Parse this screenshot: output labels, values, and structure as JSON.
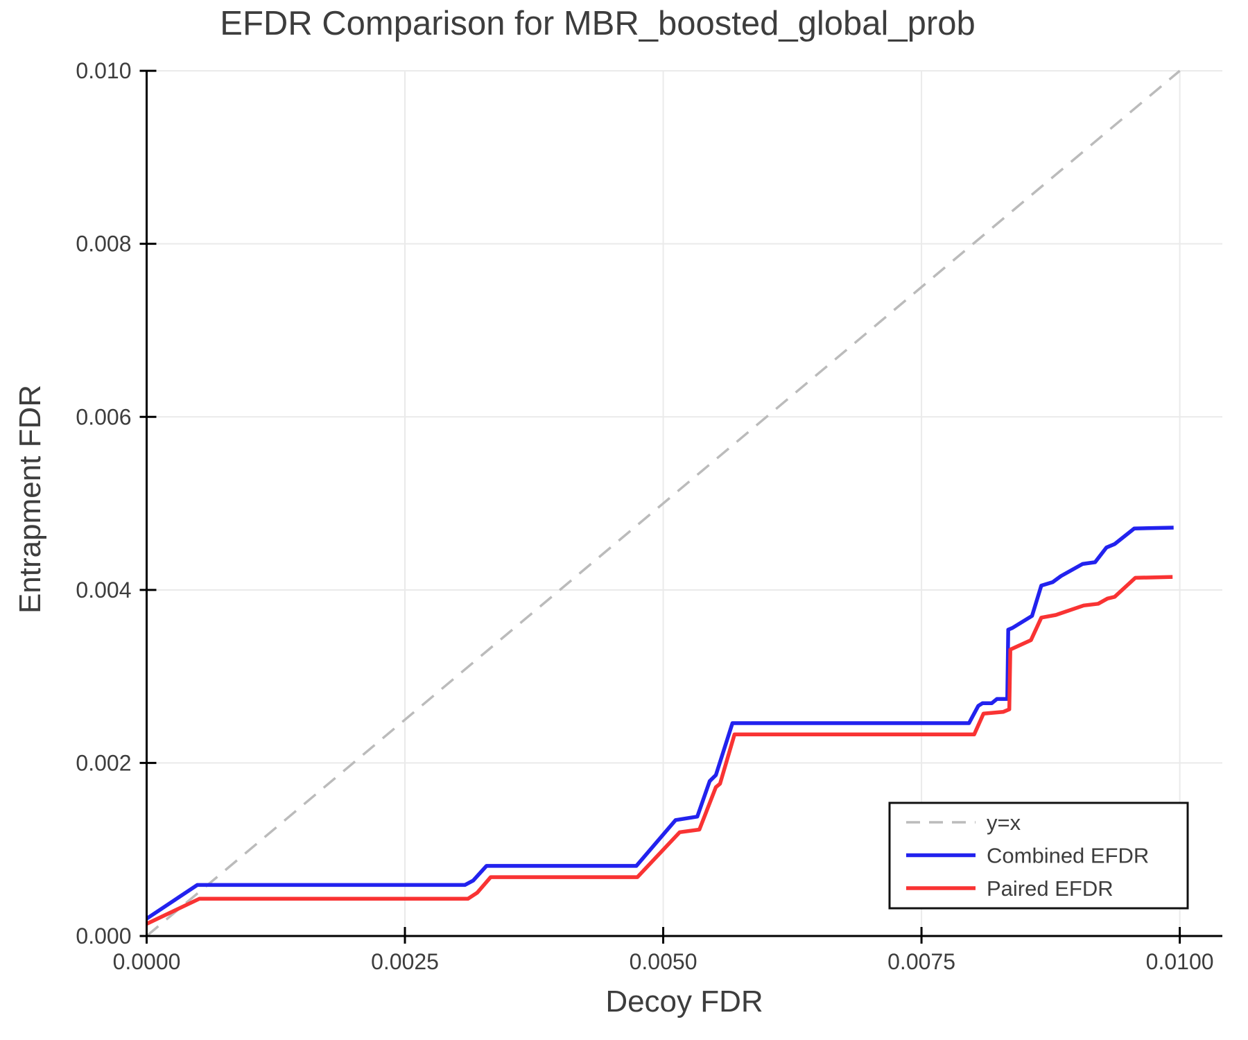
{
  "chart_data": {
    "type": "line",
    "title": "EFDR Comparison for MBR_boosted_global_prob",
    "xlabel": "Decoy FDR",
    "ylabel": "Entrapment FDR",
    "xlim": [
      0.0,
      0.01041
    ],
    "ylim": [
      0.0,
      0.01
    ],
    "grid": true,
    "x_ticks": {
      "values": [
        0.0,
        0.0025,
        0.005,
        0.0075,
        0.01
      ],
      "labels": [
        "0.0000",
        "0.0025",
        "0.0050",
        "0.0075",
        "0.0100"
      ]
    },
    "y_ticks": {
      "values": [
        0.0,
        0.002,
        0.004,
        0.006,
        0.008,
        0.01
      ],
      "labels": [
        "0.000",
        "0.002",
        "0.004",
        "0.006",
        "0.008",
        "0.010"
      ]
    },
    "legend": {
      "position": "lower right",
      "entries": [
        "y=x",
        "Combined EFDR",
        "Paired EFDR"
      ]
    },
    "reference_line": {
      "label": "y=x",
      "type": "identity",
      "style": "dashed",
      "color": "#bbbbbb",
      "from": [
        0.0,
        0.0
      ],
      "to": [
        0.01,
        0.01
      ]
    },
    "series": [
      {
        "name": "Combined EFDR",
        "color": "#2222ee",
        "points": [
          [
            0.0,
            0.0002
          ],
          [
            0.00049,
            0.00059
          ],
          [
            0.00308,
            0.00059
          ],
          [
            0.00316,
            0.00064
          ],
          [
            0.00329,
            0.00081
          ],
          [
            0.00474,
            0.00081
          ],
          [
            0.00512,
            0.00134
          ],
          [
            0.00533,
            0.00138
          ],
          [
            0.00545,
            0.00179
          ],
          [
            0.00551,
            0.00186
          ],
          [
            0.00567,
            0.00246
          ],
          [
            0.00796,
            0.00246
          ],
          [
            0.00805,
            0.00266
          ],
          [
            0.00809,
            0.00269
          ],
          [
            0.00818,
            0.00269
          ],
          [
            0.00823,
            0.00274
          ],
          [
            0.00833,
            0.00274
          ],
          [
            0.00834,
            0.00354
          ],
          [
            0.00838,
            0.00356
          ],
          [
            0.00857,
            0.0037
          ],
          [
            0.00866,
            0.00405
          ],
          [
            0.00877,
            0.00409
          ],
          [
            0.00885,
            0.00416
          ],
          [
            0.00906,
            0.0043
          ],
          [
            0.00918,
            0.00432
          ],
          [
            0.00929,
            0.00449
          ],
          [
            0.00937,
            0.00453
          ],
          [
            0.00956,
            0.00471
          ],
          [
            0.00994,
            0.00472
          ]
        ]
      },
      {
        "name": "Paired EFDR",
        "color": "#f93333",
        "points": [
          [
            0.0,
            0.00014
          ],
          [
            0.00051,
            0.00043
          ],
          [
            0.00311,
            0.00043
          ],
          [
            0.0032,
            0.0005
          ],
          [
            0.00333,
            0.00068
          ],
          [
            0.00475,
            0.00068
          ],
          [
            0.00516,
            0.0012
          ],
          [
            0.00535,
            0.00123
          ],
          [
            0.00551,
            0.00172
          ],
          [
            0.00555,
            0.00176
          ],
          [
            0.00569,
            0.00233
          ],
          [
            0.00801,
            0.00233
          ],
          [
            0.0081,
            0.00257
          ],
          [
            0.00829,
            0.00259
          ],
          [
            0.00835,
            0.00262
          ],
          [
            0.00836,
            0.00331
          ],
          [
            0.00856,
            0.00342
          ],
          [
            0.00866,
            0.00368
          ],
          [
            0.0088,
            0.00371
          ],
          [
            0.00907,
            0.00382
          ],
          [
            0.00921,
            0.00384
          ],
          [
            0.0093,
            0.0039
          ],
          [
            0.00937,
            0.00392
          ],
          [
            0.00957,
            0.00414
          ],
          [
            0.00993,
            0.00415
          ]
        ]
      }
    ],
    "style_colors": {
      "grid": "#eaeaea",
      "spine": "#000000",
      "tick_text": "#3d3d3d",
      "legend_border": "#111111",
      "legend_background": "#ffffff"
    }
  }
}
